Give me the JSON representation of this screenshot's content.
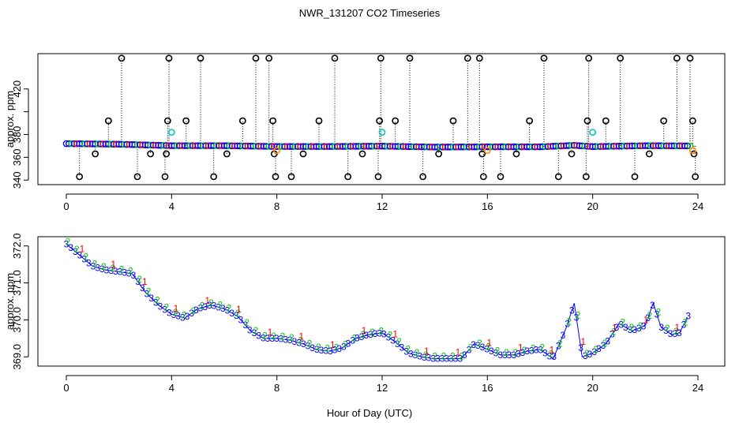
{
  "title": "NWR_131207  CO2 Timeseries",
  "xlabel": "Hour of Day (UTC)",
  "colors": {
    "outlier": "#000000",
    "series_blue": "#0000ff",
    "series_green": "#00cc00",
    "series_red": "#ff0000",
    "flagged_cyan": "#00c8c8",
    "flagged_orange": "#ff8c00"
  },
  "chart_data": [
    {
      "type": "scatter",
      "name": "full-range",
      "ylabel": "approx. ppm",
      "xlim": [
        0,
        24
      ],
      "ylim": [
        336,
        451
      ],
      "xticks": [
        0,
        4,
        8,
        12,
        16,
        20,
        24
      ],
      "yticks": [
        340,
        360,
        380,
        400,
        420
      ],
      "ytick_labels": [
        "340",
        "360",
        "380",
        "",
        "420"
      ],
      "baseline": [
        [
          0,
          372.0
        ],
        [
          2,
          371.5
        ],
        [
          4,
          370.2
        ],
        [
          6,
          370.2
        ],
        [
          8,
          369.5
        ],
        [
          10,
          369.5
        ],
        [
          12,
          369.8
        ],
        [
          14,
          369.0
        ],
        [
          16,
          369.2
        ],
        [
          18,
          369.2
        ],
        [
          19.3,
          370.5
        ],
        [
          20,
          369.4
        ],
        [
          22,
          370.2
        ],
        [
          23.8,
          370.0
        ]
      ],
      "outlier_hours": [
        0.5,
        1.1,
        1.6,
        2.1,
        2.7,
        3.2,
        3.75,
        3.8,
        3.85,
        3.9,
        4.55,
        5.1,
        5.6,
        6.1,
        6.7,
        7.2,
        7.7,
        7.85,
        7.9,
        7.95,
        8.55,
        9.0,
        9.6,
        10.2,
        10.7,
        11.25,
        11.85,
        11.9,
        11.95,
        12.5,
        13.05,
        13.55,
        14.15,
        14.7,
        15.25,
        15.7,
        15.8,
        15.85,
        16.5,
        17.1,
        17.6,
        18.15,
        18.7,
        19.2,
        19.75,
        19.8,
        19.85,
        20.5,
        21.05,
        21.6,
        22.15,
        22.7,
        23.2,
        23.7,
        23.8,
        23.85,
        23.9
      ],
      "outlier_values": [
        343,
        363,
        392,
        447,
        343,
        363,
        343,
        363,
        392,
        447,
        392,
        447,
        343,
        363,
        392,
        447,
        447,
        392,
        363,
        343,
        343,
        363,
        392,
        447,
        343,
        363,
        343,
        392,
        447,
        392,
        447,
        343,
        363,
        392,
        447,
        447,
        363,
        343,
        343,
        363,
        392,
        447,
        343,
        363,
        343,
        392,
        447,
        392,
        447,
        343,
        363,
        392,
        447,
        447,
        392,
        363,
        343
      ],
      "flagged": [
        {
          "x": 4.0,
          "y": 382,
          "color": "cyan"
        },
        {
          "x": 12.0,
          "y": 382,
          "color": "cyan"
        },
        {
          "x": 20.0,
          "y": 382,
          "color": "cyan"
        },
        {
          "x": 8.0,
          "y": 366,
          "color": "orange"
        },
        {
          "x": 16.0,
          "y": 366,
          "color": "orange"
        },
        {
          "x": 23.8,
          "y": 366,
          "color": "orange"
        }
      ]
    },
    {
      "type": "scatter",
      "name": "zoomed",
      "ylabel": "approx. ppm",
      "xlim": [
        0,
        24
      ],
      "ylim": [
        368.75,
        372.25
      ],
      "xticks": [
        0,
        4,
        8,
        12,
        16,
        20,
        24
      ],
      "yticks": [
        369.0,
        370.0,
        371.0,
        372.0
      ],
      "ytick_labels": [
        "369.0",
        "370.0",
        "371.0",
        "372.0"
      ],
      "series_glyphs": {
        "blue": "3",
        "green": "2",
        "red": "1"
      },
      "x": [
        0.0,
        0.5,
        1.0,
        1.5,
        2.0,
        2.5,
        3.0,
        3.5,
        4.0,
        4.5,
        5.0,
        5.5,
        6.0,
        6.5,
        7.0,
        7.5,
        8.0,
        8.5,
        9.0,
        9.5,
        10.0,
        10.5,
        11.0,
        11.5,
        12.0,
        12.5,
        13.0,
        13.5,
        14.0,
        14.5,
        15.0,
        15.5,
        16.0,
        16.5,
        17.0,
        17.5,
        18.0,
        18.5,
        19.0,
        19.3,
        19.6,
        20.0,
        20.5,
        21.0,
        21.5,
        22.0,
        22.3,
        22.6,
        23.0,
        23.3,
        23.7
      ],
      "y": [
        372.05,
        371.75,
        371.45,
        371.35,
        371.3,
        371.25,
        370.75,
        370.4,
        370.15,
        370.05,
        370.3,
        370.4,
        370.3,
        370.1,
        369.7,
        369.5,
        369.5,
        369.45,
        369.35,
        369.2,
        369.15,
        369.25,
        369.5,
        369.6,
        369.65,
        369.4,
        369.1,
        369.0,
        368.95,
        368.95,
        368.95,
        369.35,
        369.2,
        369.05,
        369.05,
        369.15,
        369.2,
        368.95,
        369.8,
        370.45,
        369.0,
        369.1,
        369.35,
        369.9,
        369.7,
        369.85,
        370.45,
        369.8,
        369.6,
        369.65,
        370.2
      ]
    }
  ]
}
